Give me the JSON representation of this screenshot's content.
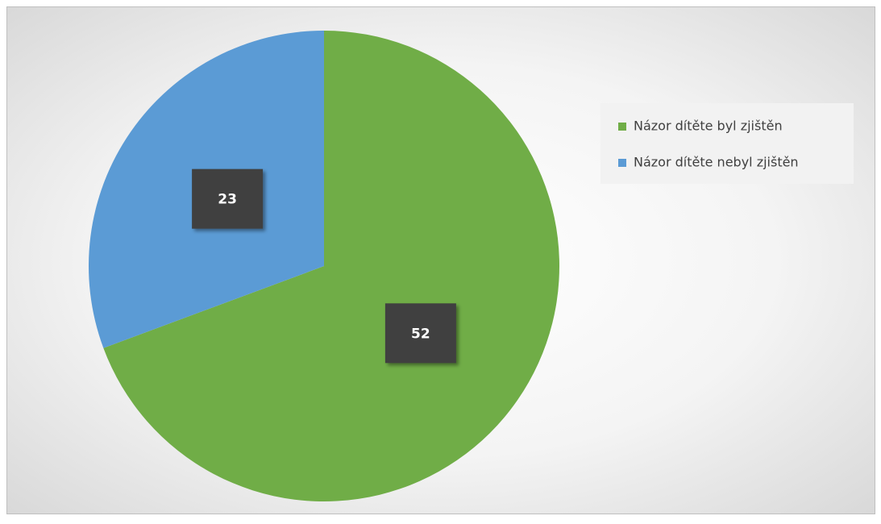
{
  "chart_data": {
    "type": "pie",
    "categories": [
      "Názor dítěte byl zjištěn",
      "Názor dítěte nebyl zjištěn"
    ],
    "values": [
      52,
      23
    ],
    "colors": [
      "#70ad47",
      "#5b9bd5"
    ],
    "legend": "right"
  }
}
